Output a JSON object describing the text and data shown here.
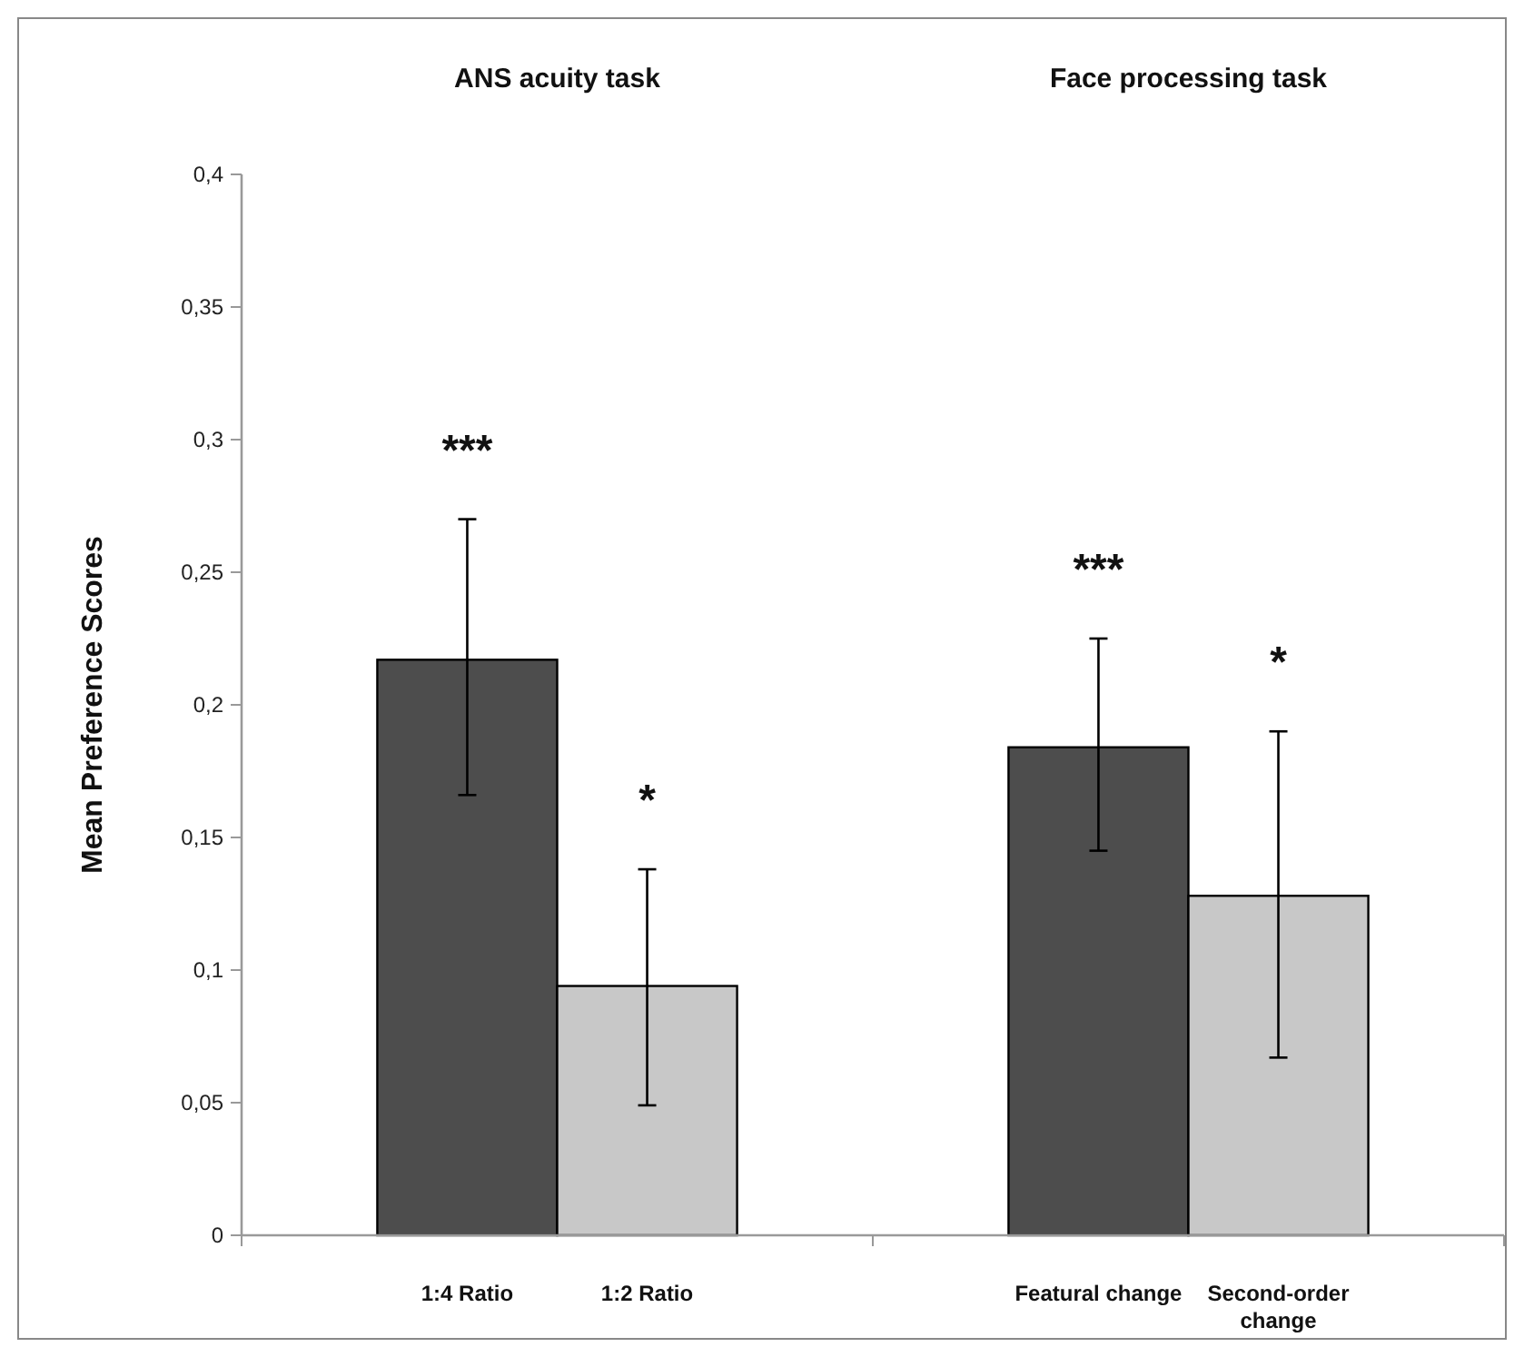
{
  "chart_data": {
    "type": "bar",
    "ylabel": "Mean Preference Scores",
    "categories": [
      "1:4 Ratio",
      "1:2 Ratio",
      "Featural change",
      "Second-order change"
    ],
    "values": [
      0.217,
      0.094,
      0.184,
      0.128
    ],
    "colors": [
      "#4d4d4d",
      "#c8c8c8",
      "#4d4d4d",
      "#c8c8c8"
    ],
    "errors": [
      [
        0.166,
        0.27
      ],
      [
        0.049,
        0.138
      ],
      [
        0.145,
        0.225
      ],
      [
        0.067,
        0.19
      ]
    ],
    "ylim": [
      0,
      0.4
    ],
    "yticks": [
      0,
      {
        "value": 0.05,
        "label": "0,05"
      },
      {
        "value": 0.1,
        "label": "0,1"
      },
      {
        "value": 0.15,
        "label": "0,15"
      },
      {
        "value": 0.2,
        "label": "0,2"
      },
      {
        "value": 0.25,
        "label": "0,25"
      },
      {
        "value": 0.3,
        "label": "0,3"
      },
      {
        "value": 0.35,
        "label": "0,35"
      },
      {
        "value": 0.4,
        "label": "0,4"
      }
    ],
    "grid": false,
    "annotations": [
      "ANS acuity task",
      "Face processing task",
      "***",
      "*",
      "***",
      "*"
    ]
  }
}
